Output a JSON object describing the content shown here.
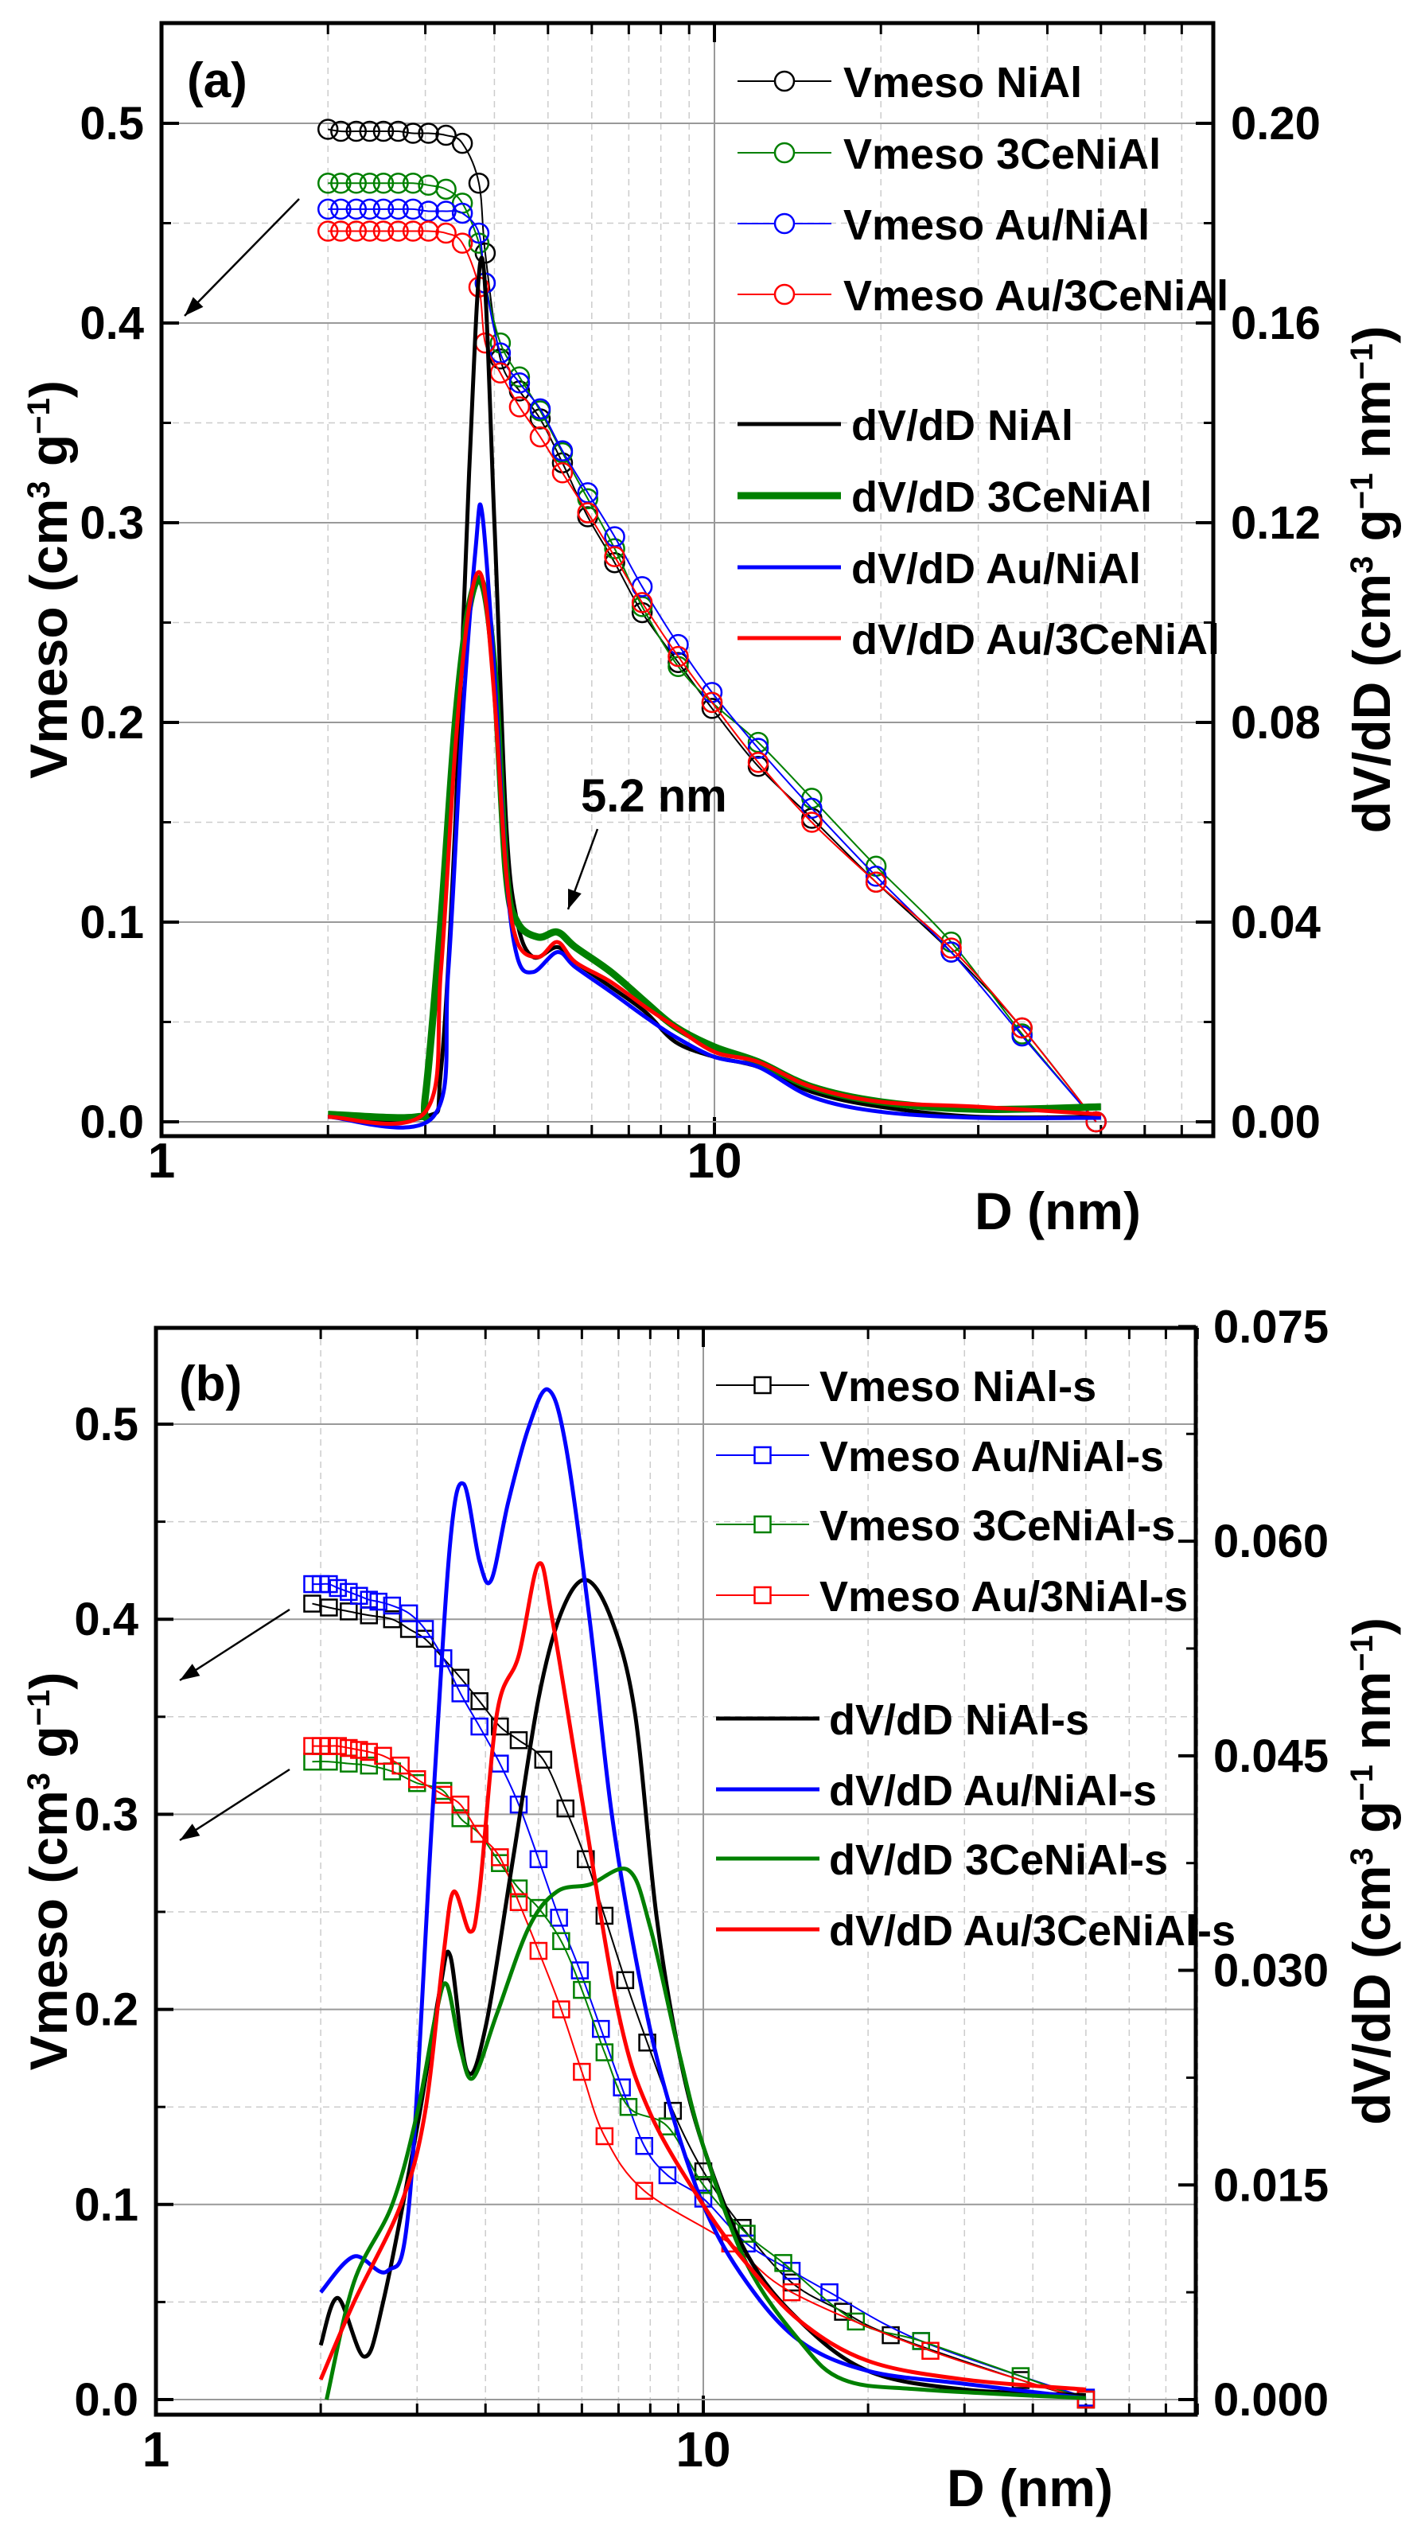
{
  "chart_data": [
    {
      "type": "line",
      "title": "(a)",
      "xlabel": "D (nm)",
      "xscale": "log",
      "xlim": [
        1,
        80
      ],
      "xticks": [
        "1",
        "10"
      ],
      "ylabel_parts": [
        [
          "Vmeso (cm",
          false
        ],
        [
          "3",
          true
        ],
        [
          " g",
          false
        ],
        [
          "−1",
          true
        ],
        [
          ")",
          false
        ]
      ],
      "ylim": [
        0,
        0.55
      ],
      "yticks": [
        "0.0",
        "0.1",
        "0.2",
        "0.3",
        "0.4",
        "0.5"
      ],
      "y2label_parts": [
        [
          "dV/dD (cm",
          false
        ],
        [
          "3",
          true
        ],
        [
          " g",
          false
        ],
        [
          "−1",
          true
        ],
        [
          " nm",
          false
        ],
        [
          "−1",
          true
        ],
        [
          ")",
          false
        ]
      ],
      "y2lim": [
        0,
        0.22
      ],
      "y2ticks": [
        "0.00",
        "0.04",
        "0.08",
        "0.12",
        "0.16",
        "0.20"
      ],
      "grid": true,
      "legend": "top-right",
      "annotations": [
        "5.2 nm"
      ],
      "series": [
        {
          "name": "Vmeso NiAl",
          "axis": "left",
          "marker": "circle",
          "color": "#000000",
          "x": [
            2.0,
            2.11,
            2.25,
            2.38,
            2.52,
            2.68,
            2.85,
            3.04,
            3.27,
            3.5,
            3.75,
            3.85,
            4.1,
            4.44,
            4.84,
            5.31,
            5.9,
            6.6,
            7.4,
            8.6,
            9.9,
            12,
            15,
            19.6,
            26.8,
            36,
            49
          ],
          "y": [
            0.497,
            0.496,
            0.496,
            0.496,
            0.496,
            0.496,
            0.495,
            0.495,
            0.494,
            0.49,
            0.47,
            0.435,
            0.382,
            0.366,
            0.352,
            0.33,
            0.303,
            0.28,
            0.255,
            0.23,
            0.207,
            0.178,
            0.152,
            0.12,
            0.085,
            0.047,
            0.0
          ]
        },
        {
          "name": "Vmeso 3CeNiAl",
          "axis": "left",
          "marker": "circle",
          "color": "#008000",
          "x": [
            2.0,
            2.11,
            2.25,
            2.38,
            2.52,
            2.68,
            2.85,
            3.04,
            3.27,
            3.5,
            3.75,
            3.85,
            4.1,
            4.44,
            4.84,
            5.31,
            5.9,
            6.6,
            7.4,
            8.6,
            9.9,
            12,
            15,
            19.6,
            26.8,
            36,
            49
          ],
          "y": [
            0.47,
            0.47,
            0.47,
            0.47,
            0.47,
            0.47,
            0.47,
            0.469,
            0.467,
            0.46,
            0.44,
            0.42,
            0.39,
            0.373,
            0.356,
            0.335,
            0.312,
            0.287,
            0.258,
            0.228,
            0.21,
            0.19,
            0.162,
            0.128,
            0.09,
            0.044,
            0.0
          ]
        },
        {
          "name": "Vmeso Au/NiAl",
          "axis": "left",
          "marker": "circle",
          "color": "#0000ff",
          "x": [
            2.0,
            2.11,
            2.25,
            2.38,
            2.52,
            2.68,
            2.85,
            3.04,
            3.27,
            3.5,
            3.75,
            3.85,
            4.1,
            4.44,
            4.84,
            5.31,
            5.9,
            6.6,
            7.4,
            8.6,
            9.9,
            12,
            15,
            19.6,
            26.8,
            36,
            49
          ],
          "y": [
            0.457,
            0.457,
            0.457,
            0.457,
            0.457,
            0.457,
            0.457,
            0.456,
            0.456,
            0.455,
            0.445,
            0.42,
            0.385,
            0.37,
            0.357,
            0.336,
            0.315,
            0.293,
            0.268,
            0.239,
            0.215,
            0.187,
            0.157,
            0.123,
            0.085,
            0.043,
            0.0
          ]
        },
        {
          "name": "Vmeso Au/3CeNiAl",
          "axis": "left",
          "marker": "circle",
          "color": "#ff0000",
          "x": [
            2.0,
            2.11,
            2.25,
            2.38,
            2.52,
            2.68,
            2.85,
            3.04,
            3.27,
            3.5,
            3.75,
            3.85,
            4.1,
            4.44,
            4.84,
            5.31,
            5.9,
            6.6,
            7.4,
            8.6,
            9.9,
            12,
            15,
            19.6,
            26.8,
            36,
            49
          ],
          "y": [
            0.446,
            0.446,
            0.446,
            0.446,
            0.446,
            0.446,
            0.446,
            0.446,
            0.445,
            0.44,
            0.418,
            0.39,
            0.375,
            0.358,
            0.343,
            0.325,
            0.305,
            0.283,
            0.26,
            0.233,
            0.21,
            0.18,
            0.15,
            0.12,
            0.087,
            0.047,
            0.0
          ]
        },
        {
          "name": "dV/dD NiAl",
          "axis": "right",
          "marker": "none",
          "color": "#000000",
          "weight": "normal",
          "x": [
            2.0,
            3.0,
            3.2,
            3.4,
            3.6,
            3.8,
            4.0,
            4.2,
            4.4,
            4.7,
            5.2,
            5.6,
            6.5,
            7.5,
            8.5,
            10,
            12,
            15,
            20,
            30,
            50
          ],
          "y": [
            0.001,
            0.001,
            0.01,
            0.06,
            0.13,
            0.173,
            0.12,
            0.06,
            0.04,
            0.033,
            0.035,
            0.032,
            0.027,
            0.022,
            0.016,
            0.013,
            0.011,
            0.006,
            0.003,
            0.001,
            0.001
          ]
        },
        {
          "name": "dV/dD 3CeNiAl",
          "axis": "right",
          "marker": "none",
          "color": "#008000",
          "weight": "heavy",
          "x": [
            2.0,
            2.9,
            3.0,
            3.2,
            3.4,
            3.6,
            3.8,
            4.0,
            4.2,
            4.4,
            4.8,
            5.2,
            5.6,
            6.5,
            7.5,
            8.5,
            10,
            12,
            15,
            20,
            30,
            50
          ],
          "y": [
            0.0015,
            0.001,
            0.005,
            0.04,
            0.08,
            0.103,
            0.108,
            0.09,
            0.05,
            0.04,
            0.037,
            0.038,
            0.035,
            0.03,
            0.024,
            0.019,
            0.015,
            0.012,
            0.007,
            0.004,
            0.0025,
            0.003
          ]
        },
        {
          "name": "dV/dD Au/NiAl",
          "axis": "right",
          "marker": "none",
          "color": "#0000ff",
          "weight": "normal",
          "x": [
            2.0,
            3.1,
            3.3,
            3.5,
            3.7,
            3.8,
            4.0,
            4.2,
            4.4,
            4.7,
            5.2,
            5.6,
            6.5,
            7.5,
            8.5,
            10,
            12,
            15,
            20,
            30,
            50
          ],
          "y": [
            0.001,
            0.001,
            0.03,
            0.08,
            0.115,
            0.122,
            0.09,
            0.05,
            0.033,
            0.03,
            0.034,
            0.031,
            0.026,
            0.021,
            0.017,
            0.013,
            0.011,
            0.005,
            0.002,
            0.0008,
            0.0008
          ]
        },
        {
          "name": "dV/dD Au/3CeNiAl",
          "axis": "right",
          "marker": "none",
          "color": "#ff0000",
          "weight": "normal",
          "x": [
            2.0,
            3.0,
            3.2,
            3.4,
            3.6,
            3.8,
            4.0,
            4.2,
            4.4,
            4.8,
            5.2,
            5.6,
            6.5,
            7.5,
            8.5,
            10,
            12,
            15,
            20,
            30,
            50
          ],
          "y": [
            0.001,
            0.002,
            0.03,
            0.075,
            0.103,
            0.109,
            0.085,
            0.05,
            0.036,
            0.033,
            0.036,
            0.032,
            0.028,
            0.023,
            0.019,
            0.014,
            0.012,
            0.007,
            0.004,
            0.003,
            0.0015
          ]
        }
      ]
    },
    {
      "type": "line",
      "title": "(b)",
      "xlabel": "D (nm)",
      "xscale": "log",
      "xlim": [
        1,
        80
      ],
      "xticks": [
        "1",
        "10"
      ],
      "ylabel_parts": [
        [
          "Vmeso (cm",
          false
        ],
        [
          "3",
          true
        ],
        [
          " g",
          false
        ],
        [
          "−1",
          true
        ],
        [
          ")",
          false
        ]
      ],
      "ylim": [
        0,
        0.55
      ],
      "yticks": [
        "0.0",
        "0.1",
        "0.2",
        "0.3",
        "0.4",
        "0.5"
      ],
      "y2label_parts": [
        [
          "dV/dD (cm",
          false
        ],
        [
          "3",
          true
        ],
        [
          " g",
          false
        ],
        [
          "−1",
          true
        ],
        [
          " nm",
          false
        ],
        [
          "−1",
          true
        ],
        [
          ")",
          false
        ]
      ],
      "y2lim": [
        0,
        0.075
      ],
      "y2ticks": [
        "0.000",
        "0.015",
        "0.030",
        "0.045",
        "0.060",
        "0.075"
      ],
      "grid": true,
      "legend": "top-right",
      "series": [
        {
          "name": "Vmeso NiAl-s",
          "axis": "left",
          "marker": "square",
          "color": "#000000",
          "x": [
            1.93,
            2.07,
            2.25,
            2.45,
            2.7,
            2.9,
            3.1,
            3.35,
            3.6,
            3.9,
            4.25,
            4.6,
            5.1,
            5.6,
            6.1,
            6.6,
            7.2,
            7.9,
            8.8,
            10,
            11.8,
            14.5,
            18,
            22,
            38,
            50
          ],
          "y": [
            0.408,
            0.406,
            0.404,
            0.402,
            0.4,
            0.395,
            0.39,
            0.38,
            0.37,
            0.358,
            0.345,
            0.338,
            0.328,
            0.303,
            0.277,
            0.248,
            0.215,
            0.183,
            0.148,
            0.117,
            0.088,
            0.06,
            0.045,
            0.033,
            0.01,
            0.0
          ]
        },
        {
          "name": "Vmeso Au/NiAl-s",
          "axis": "left",
          "marker": "square",
          "color": "#0000ff",
          "x": [
            1.93,
            2.0,
            2.07,
            2.15,
            2.25,
            2.35,
            2.45,
            2.55,
            2.7,
            2.9,
            3.1,
            3.35,
            3.6,
            3.9,
            4.25,
            4.6,
            5.0,
            5.45,
            5.95,
            6.5,
            7.1,
            7.8,
            8.6,
            10,
            12,
            14.5,
            17,
            25,
            50
          ],
          "y": [
            0.418,
            0.418,
            0.418,
            0.416,
            0.414,
            0.412,
            0.41,
            0.409,
            0.407,
            0.403,
            0.395,
            0.38,
            0.362,
            0.345,
            0.326,
            0.305,
            0.277,
            0.247,
            0.22,
            0.19,
            0.16,
            0.13,
            0.115,
            0.103,
            0.08,
            0.066,
            0.055,
            0.03,
            0.001
          ]
        },
        {
          "name": "Vmeso 3CeNiAl-s",
          "axis": "left",
          "marker": "square",
          "color": "#008000",
          "x": [
            1.93,
            2.07,
            2.25,
            2.45,
            2.7,
            3.0,
            3.35,
            3.6,
            3.9,
            4.25,
            4.6,
            5.0,
            5.5,
            6.0,
            6.6,
            7.3,
            8.6,
            10,
            12,
            14,
            19,
            25,
            38,
            50
          ],
          "y": [
            0.327,
            0.327,
            0.326,
            0.325,
            0.322,
            0.316,
            0.312,
            0.298,
            0.29,
            0.275,
            0.262,
            0.252,
            0.235,
            0.21,
            0.178,
            0.15,
            0.14,
            0.11,
            0.085,
            0.07,
            0.04,
            0.03,
            0.012,
            0.0
          ]
        },
        {
          "name": "Vmeso Au/3NiAl-s",
          "axis": "left",
          "marker": "square",
          "color": "#ff0000",
          "x": [
            1.93,
            2.0,
            2.07,
            2.15,
            2.25,
            2.35,
            2.45,
            2.6,
            2.8,
            3.0,
            3.35,
            3.6,
            3.9,
            4.25,
            4.6,
            5.0,
            5.5,
            6.0,
            6.6,
            7.8,
            11.2,
            14.5,
            26,
            50
          ],
          "y": [
            0.335,
            0.335,
            0.335,
            0.335,
            0.334,
            0.333,
            0.332,
            0.33,
            0.325,
            0.318,
            0.31,
            0.305,
            0.29,
            0.278,
            0.255,
            0.23,
            0.2,
            0.168,
            0.135,
            0.107,
            0.08,
            0.055,
            0.025,
            0.0
          ]
        },
        {
          "name": "dV/dD NiAl-s",
          "axis": "right",
          "marker": "none",
          "color": "#000000",
          "weight": "normal",
          "x": [
            2.0,
            2.15,
            2.4,
            2.6,
            3.0,
            3.3,
            3.45,
            3.7,
            4.0,
            4.5,
            5.0,
            5.5,
            6.1,
            6.8,
            7.5,
            8.2,
            9.0,
            10,
            12,
            15,
            20,
            30,
            50
          ],
          "y": [
            0.0038,
            0.0071,
            0.003,
            0.0068,
            0.019,
            0.0286,
            0.031,
            0.023,
            0.026,
            0.038,
            0.049,
            0.055,
            0.0573,
            0.0545,
            0.048,
            0.034,
            0.0245,
            0.0177,
            0.0102,
            0.0055,
            0.002,
            0.0007,
            0.0003
          ]
        },
        {
          "name": "dV/dD Au/NiAl-s",
          "axis": "right",
          "marker": "none",
          "color": "#0000ff",
          "weight": "normal",
          "x": [
            2.0,
            2.3,
            2.65,
            2.9,
            3.2,
            3.45,
            3.65,
            3.9,
            4.1,
            4.4,
            4.8,
            5.2,
            5.6,
            6.2,
            6.8,
            7.6,
            8.5,
            10,
            12,
            15,
            20,
            30,
            50
          ],
          "y": [
            0.0075,
            0.01,
            0.009,
            0.0136,
            0.041,
            0.06,
            0.064,
            0.0586,
            0.0573,
            0.0627,
            0.068,
            0.0706,
            0.0668,
            0.0545,
            0.041,
            0.03,
            0.0218,
            0.0136,
            0.0082,
            0.0041,
            0.002,
            0.0011,
            0.0001
          ]
        },
        {
          "name": "dV/dD 3CeNiAl-s",
          "axis": "right",
          "marker": "none",
          "color": "#008000",
          "weight": "normal",
          "x": [
            2.05,
            2.3,
            2.7,
            3.0,
            3.25,
            3.4,
            3.6,
            3.8,
            4.2,
            4.8,
            5.4,
            6.2,
            7.3,
            8.0,
            9.0,
            10,
            12,
            15,
            18,
            25,
            50
          ],
          "y": [
            0.0,
            0.0082,
            0.0136,
            0.02,
            0.027,
            0.029,
            0.0245,
            0.0225,
            0.027,
            0.033,
            0.0355,
            0.036,
            0.037,
            0.033,
            0.0245,
            0.0177,
            0.0095,
            0.0041,
            0.0014,
            0.0007,
            0.0001
          ]
        },
        {
          "name": "dV/dD Au/3CeNiAl-s",
          "axis": "right",
          "marker": "none",
          "color": "#ff0000",
          "weight": "normal",
          "x": [
            2.0,
            2.3,
            2.8,
            3.1,
            3.35,
            3.5,
            3.75,
            3.9,
            4.2,
            4.6,
            5.0,
            5.3,
            6.0,
            7.0,
            8.0,
            10,
            12,
            15,
            20,
            30,
            50
          ],
          "y": [
            0.0014,
            0.0068,
            0.0136,
            0.02,
            0.031,
            0.0355,
            0.0327,
            0.0355,
            0.048,
            0.052,
            0.0584,
            0.0545,
            0.042,
            0.027,
            0.02,
            0.0136,
            0.0095,
            0.0055,
            0.0027,
            0.0014,
            0.0007
          ]
        }
      ]
    }
  ]
}
